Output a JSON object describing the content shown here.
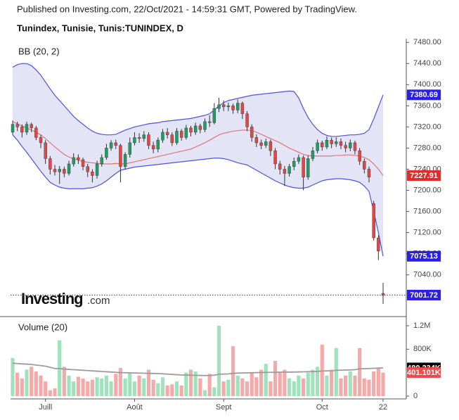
{
  "chart_data": {
    "type": "candlestick",
    "source": "Published on Investing.com, 22/Oct/2021 - 14:59:31 GMT, Powered by TradingView.",
    "title": "Tunindex, Tunisie, Tunis:TUNINDEX, D",
    "indicator_label": "BB (20, 2)",
    "logo": "Investing",
    "logo_suffix": ".com",
    "categories": [
      null,
      null,
      null,
      null,
      null,
      null,
      null,
      "Juill",
      null,
      null,
      null,
      null,
      null,
      null,
      null,
      null,
      null,
      null,
      null,
      null,
      null,
      null,
      null,
      null,
      null,
      null,
      "Août",
      null,
      null,
      null,
      null,
      null,
      null,
      null,
      null,
      null,
      null,
      null,
      null,
      null,
      null,
      null,
      null,
      null,
      null,
      "Sept",
      null,
      null,
      null,
      null,
      null,
      null,
      null,
      null,
      null,
      null,
      null,
      null,
      null,
      null,
      null,
      null,
      null,
      null,
      null,
      null,
      "Oct",
      null,
      null,
      null,
      null,
      null,
      null,
      null,
      null,
      null,
      null,
      null,
      null,
      "22"
    ],
    "open": [
      7310,
      7325,
      7320,
      7310,
      7325,
      7318,
      7300,
      7290,
      7260,
      7240,
      7235,
      7240,
      7232,
      7250,
      7262,
      7258,
      7245,
      7235,
      7228,
      7250,
      7262,
      7280,
      7290,
      7285,
      7245,
      7268,
      7290,
      7300,
      7298,
      7305,
      7285,
      7278,
      7295,
      7310,
      7305,
      7290,
      7312,
      7300,
      7318,
      7310,
      7322,
      7315,
      7330,
      7328,
      7355,
      7362,
      7358,
      7360,
      7352,
      7365,
      7345,
      7320,
      7300,
      7290,
      7285,
      7292,
      7275,
      7250,
      7240,
      7232,
      7245,
      7255,
      7262,
      7225,
      7260,
      7275,
      7290,
      7282,
      7295,
      7288,
      7292,
      7285,
      7280,
      7290,
      7275,
      7255,
      7240,
      7175,
      7110,
      7005
    ],
    "high": [
      7332,
      7330,
      7325,
      7330,
      7328,
      7322,
      7305,
      7295,
      7265,
      7248,
      7246,
      7245,
      7256,
      7270,
      7268,
      7262,
      7250,
      7240,
      7256,
      7268,
      7288,
      7295,
      7296,
      7288,
      7272,
      7300,
      7310,
      7308,
      7312,
      7310,
      7292,
      7300,
      7316,
      7318,
      7310,
      7318,
      7316,
      7324,
      7322,
      7328,
      7326,
      7336,
      7342,
      7365,
      7375,
      7370,
      7366,
      7364,
      7372,
      7368,
      7350,
      7325,
      7306,
      7296,
      7298,
      7296,
      7280,
      7256,
      7246,
      7250,
      7262,
      7268,
      7266,
      7266,
      7282,
      7296,
      7294,
      7302,
      7300,
      7300,
      7298,
      7292,
      7296,
      7294,
      7280,
      7260,
      7245,
      7180,
      7115,
      7025
    ],
    "low": [
      7305,
      7312,
      7300,
      7305,
      7310,
      7295,
      7280,
      7250,
      7230,
      7228,
      7212,
      7225,
      7228,
      7245,
      7250,
      7238,
      7225,
      7215,
      7222,
      7245,
      7258,
      7275,
      7278,
      7215,
      7240,
      7262,
      7285,
      7290,
      7292,
      7278,
      7270,
      7272,
      7290,
      7298,
      7284,
      7286,
      7294,
      7296,
      7302,
      7305,
      7308,
      7310,
      7320,
      7325,
      7348,
      7350,
      7350,
      7345,
      7346,
      7335,
      7312,
      7292,
      7282,
      7278,
      7280,
      7265,
      7240,
      7230,
      7208,
      7226,
      7238,
      7250,
      7200,
      7220,
      7255,
      7270,
      7275,
      7278,
      7280,
      7282,
      7278,
      7272,
      7274,
      7268,
      7248,
      7232,
      7215,
      7105,
      7068,
      6985
    ],
    "close": [
      7325,
      7320,
      7310,
      7325,
      7318,
      7300,
      7290,
      7260,
      7240,
      7235,
      7240,
      7232,
      7250,
      7262,
      7258,
      7245,
      7235,
      7228,
      7250,
      7262,
      7280,
      7290,
      7285,
      7245,
      7268,
      7290,
      7300,
      7298,
      7305,
      7285,
      7278,
      7295,
      7310,
      7305,
      7290,
      7312,
      7300,
      7318,
      7310,
      7322,
      7315,
      7330,
      7328,
      7355,
      7362,
      7358,
      7360,
      7352,
      7365,
      7345,
      7320,
      7300,
      7290,
      7285,
      7292,
      7275,
      7250,
      7240,
      7232,
      7245,
      7255,
      7262,
      7225,
      7260,
      7275,
      7290,
      7282,
      7295,
      7288,
      7292,
      7285,
      7280,
      7290,
      7275,
      7255,
      7240,
      7225,
      7110,
      7085,
      7001.72
    ],
    "up_color": "#1e9e62",
    "down_color": "#e04848",
    "bands": [
      {
        "color": "#5050e6",
        "label_color": "#2a1ee8",
        "values": [
          7433,
          7438,
          7440,
          7440,
          7436,
          7428,
          7418,
          7405,
          7392,
          7380,
          7370,
          7360,
          7350,
          7340,
          7332,
          7325,
          7318,
          7312,
          7308,
          7306,
          7305,
          7305,
          7306,
          7310,
          7314,
          7317,
          7320,
          7322,
          7324,
          7326,
          7327,
          7328,
          7330,
          7331,
          7332,
          7333,
          7334,
          7335,
          7336,
          7338,
          7340,
          7342,
          7345,
          7352,
          7360,
          7366,
          7370,
          7372,
          7374,
          7376,
          7378,
          7380,
          7381,
          7382,
          7383,
          7384,
          7385,
          7386,
          7387,
          7388,
          7387,
          7375,
          7355,
          7338,
          7325,
          7315,
          7308,
          7304,
          7302,
          7302,
          7303,
          7304,
          7305,
          7305,
          7306,
          7308,
          7315,
          7335,
          7358,
          7380.69
        ]
      },
      {
        "color": "#e07676",
        "label_color": "#e52a2a",
        "values": [
          7330,
          7326,
          7322,
          7318,
          7314,
          7310,
          7305,
          7298,
          7290,
          7282,
          7275,
          7268,
          7263,
          7260,
          7257,
          7255,
          7253,
          7252,
          7251,
          7250,
          7250,
          7250,
          7251,
          7250,
          7250,
          7252,
          7254,
          7256,
          7258,
          7260,
          7262,
          7264,
          7266,
          7268,
          7270,
          7272,
          7274,
          7276,
          7278,
          7282,
          7286,
          7290,
          7295,
          7300,
          7305,
          7308,
          7310,
          7312,
          7313,
          7314,
          7314,
          7313,
          7310,
          7306,
          7302,
          7298,
          7294,
          7290,
          7285,
          7280,
          7276,
          7272,
          7268,
          7266,
          7265,
          7265,
          7265,
          7265,
          7265,
          7266,
          7266,
          7267,
          7267,
          7266,
          7265,
          7262,
          7258,
          7250,
          7240,
          7227.91
        ]
      },
      {
        "color": "#5050e6",
        "label_color": "#2a1ee8",
        "values": [
          7305,
          7295,
          7283,
          7272,
          7260,
          7248,
          7236,
          7225,
          7215,
          7210,
          7206,
          7204,
          7203,
          7203,
          7203,
          7203,
          7204,
          7205,
          7208,
          7212,
          7218,
          7225,
          7232,
          7238,
          7240,
          7242,
          7244,
          7245,
          7246,
          7247,
          7248,
          7249,
          7250,
          7251,
          7252,
          7253,
          7254,
          7255,
          7256,
          7257,
          7258,
          7259,
          7260,
          7261,
          7261,
          7260,
          7258,
          7255,
          7252,
          7250,
          7248,
          7243,
          7238,
          7233,
          7228,
          7223,
          7218,
          7214,
          7210,
          7207,
          7205,
          7204,
          7204,
          7206,
          7210,
          7214,
          7218,
          7220,
          7221,
          7222,
          7222,
          7221,
          7220,
          7218,
          7215,
          7208,
          7198,
          7160,
          7120,
          7075.13
        ]
      }
    ],
    "band_fill": "#e4e4f7",
    "last_price_color": "#2a1ee8",
    "ylim": [
      6965,
      7487
    ],
    "yticks": [
      7040,
      7080,
      7120,
      7160,
      7200,
      7240,
      7280,
      7320,
      7360,
      7400,
      7440,
      7480
    ],
    "ytick_labels": [
      "7040.00",
      "7080.00",
      "7120.00",
      "7160.00",
      "7200.00",
      "7240.00",
      "7280.00",
      "7320.00",
      "7360.00",
      "7400.00",
      "7440.00",
      "7480.00"
    ],
    "volume": {
      "label": "Volume (20)",
      "up_color": "#9fe2bd",
      "down_color": "#f5aaaa",
      "label_color": "#f24a4a",
      "ma_color": "#a09c9c",
      "ma_label_color": "#000000",
      "values": [
        650000,
        400000,
        300000,
        450000,
        500000,
        420000,
        350000,
        250000,
        100000,
        130000,
        950000,
        500000,
        350000,
        250000,
        330000,
        300000,
        250000,
        280000,
        320000,
        300000,
        350000,
        250000,
        380000,
        480000,
        300000,
        400000,
        250000,
        350000,
        300000,
        450000,
        280000,
        220000,
        320000,
        180000,
        200000,
        250000,
        180000,
        400000,
        450000,
        420000,
        300000,
        100000,
        380000,
        150000,
        1200000,
        250000,
        280000,
        850000,
        350000,
        300000,
        250000,
        400000,
        320000,
        450000,
        550000,
        250000,
        600000,
        400000,
        450000,
        300000,
        250000,
        350000,
        300000,
        400000,
        450000,
        500000,
        880000,
        350000,
        450000,
        820000,
        300000,
        350000,
        420000,
        350000,
        820000,
        300000,
        280000,
        420000,
        480000,
        401101
      ],
      "value_labels": {
        "79": "401.101K"
      },
      "ma": [
        560000,
        555000,
        550000,
        545000,
        540000,
        530000,
        520000,
        510000,
        490000,
        470000,
        470000,
        460000,
        455000,
        450000,
        445000,
        440000,
        435000,
        430000,
        425000,
        420000,
        415000,
        410000,
        405000,
        400000,
        398000,
        396000,
        394000,
        392000,
        390000,
        388000,
        386000,
        384000,
        380000,
        375000,
        370000,
        365000,
        360000,
        358000,
        356000,
        354000,
        352000,
        350000,
        352000,
        356000,
        372000,
        376000,
        378000,
        388000,
        392000,
        394000,
        396000,
        398000,
        400000,
        402000,
        404000,
        405000,
        406000,
        407000,
        408000,
        409000,
        410000,
        412000,
        414000,
        416000,
        418000,
        420000,
        428000,
        430000,
        432000,
        440000,
        442000,
        444000,
        446000,
        450000,
        465000,
        468000,
        470000,
        474000,
        478000,
        480234
      ],
      "ma_value_labels": {
        "79": "480.234K"
      },
      "ylim": [
        0,
        1320000
      ],
      "yticks": [
        0,
        {
          "value": 800000,
          "label": "800K"
        },
        {
          "value": 1200000,
          "label": "1.2M"
        }
      ]
    }
  }
}
